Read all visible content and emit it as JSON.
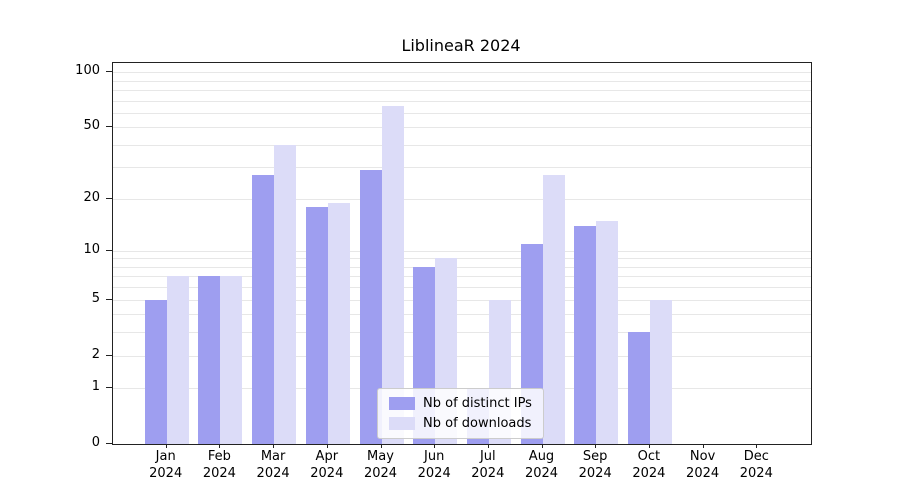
{
  "title": "LiblineaR 2024",
  "chart_data": {
    "type": "bar",
    "title": "LiblineaR 2024",
    "yscale": "log1p",
    "ylim": [
      0,
      112
    ],
    "yticks": [
      0,
      1,
      2,
      5,
      10,
      20,
      50,
      100
    ],
    "grid": "horizontal, light gray, minor and major log ticks",
    "legend_position": "lower-center-inside",
    "categories": [
      {
        "month": "Jan",
        "year": "2024"
      },
      {
        "month": "Feb",
        "year": "2024"
      },
      {
        "month": "Mar",
        "year": "2024"
      },
      {
        "month": "Apr",
        "year": "2024"
      },
      {
        "month": "May",
        "year": "2024"
      },
      {
        "month": "Jun",
        "year": "2024"
      },
      {
        "month": "Jul",
        "year": "2024"
      },
      {
        "month": "Aug",
        "year": "2024"
      },
      {
        "month": "Sep",
        "year": "2024"
      },
      {
        "month": "Oct",
        "year": "2024"
      },
      {
        "month": "Nov",
        "year": "2024"
      },
      {
        "month": "Dec",
        "year": "2024"
      }
    ],
    "series": [
      {
        "name": "Nb of distinct IPs",
        "color": "#9e9ef0",
        "values": [
          5,
          7,
          27,
          18,
          29,
          8,
          1,
          11,
          14,
          3,
          0,
          0
        ]
      },
      {
        "name": "Nb of downloads",
        "color": "#dcdcf8",
        "values": [
          7,
          7,
          40,
          19,
          65,
          9,
          5,
          27,
          15,
          5,
          0,
          0
        ]
      }
    ]
  }
}
